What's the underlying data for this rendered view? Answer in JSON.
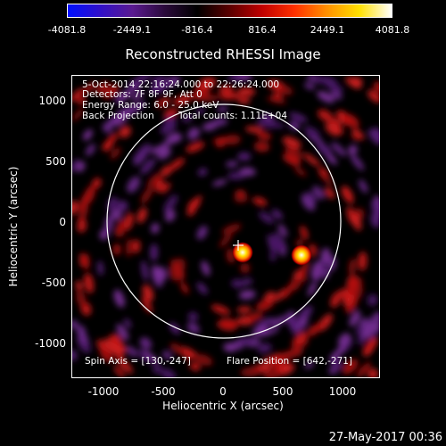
{
  "colorbar": {
    "ticks": [
      "-4081.8",
      "-2449.1",
      "-816.4",
      "816.4",
      "2449.1",
      "4081.8"
    ],
    "colors": [
      "#0010ff",
      "#3010c8",
      "#5a1a90",
      "#2a0a3a",
      "#000000",
      "#5a0000",
      "#c00000",
      "#ff3000",
      "#ff9000",
      "#ffe000",
      "#ffffff"
    ]
  },
  "title": "Reconstructed RHESSI Image",
  "info": {
    "time": "5-Oct-2014 22:16:24.000 to 22:26:24.000",
    "detectors": "Detectors: 7F 8F 9F, Att 0",
    "energy": "Energy Range: 6.0 - 25.0 keV",
    "method": "Back Projection",
    "counts": "Total counts: 1.11E+04",
    "spin_axis": "Spin Axis = [130,-247]",
    "flare_position": "Flare Position = [642,-271]"
  },
  "axes": {
    "xlabel": "Heliocentric X (arcsec)",
    "ylabel": "Heliocentric Y (arcsec)",
    "xticks": [
      "-1000",
      "-500",
      "0",
      "500",
      "1000"
    ],
    "yticks": [
      "1000",
      "500",
      "0",
      "-500",
      "-1000"
    ],
    "xlim": [
      -1300,
      1300
    ],
    "ylim": [
      -1250,
      1250
    ]
  },
  "timestamp": "27-May-2017 00:36"
}
